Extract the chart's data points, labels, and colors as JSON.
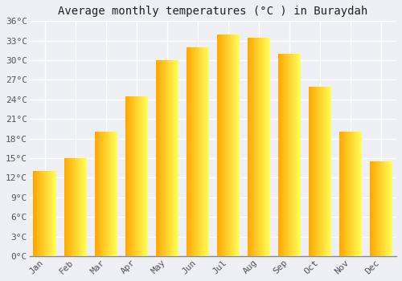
{
  "title": "Average monthly temperatures (°C ) in Buraydah",
  "months": [
    "Jan",
    "Feb",
    "Mar",
    "Apr",
    "May",
    "Jun",
    "Jul",
    "Aug",
    "Sep",
    "Oct",
    "Nov",
    "Dec"
  ],
  "values": [
    13,
    15,
    19,
    24.5,
    30,
    32,
    34,
    33.5,
    31,
    26,
    19,
    14.5
  ],
  "bar_color_left": "#FFA500",
  "bar_color_right": "#FFD060",
  "ylim": [
    0,
    36
  ],
  "yticks": [
    0,
    3,
    6,
    9,
    12,
    15,
    18,
    21,
    24,
    27,
    30,
    33,
    36
  ],
  "background_color": "#eef0f5",
  "plot_bg_color": "#eef0f5",
  "grid_color": "#ffffff",
  "title_fontsize": 10,
  "tick_fontsize": 8,
  "font_family": "monospace"
}
